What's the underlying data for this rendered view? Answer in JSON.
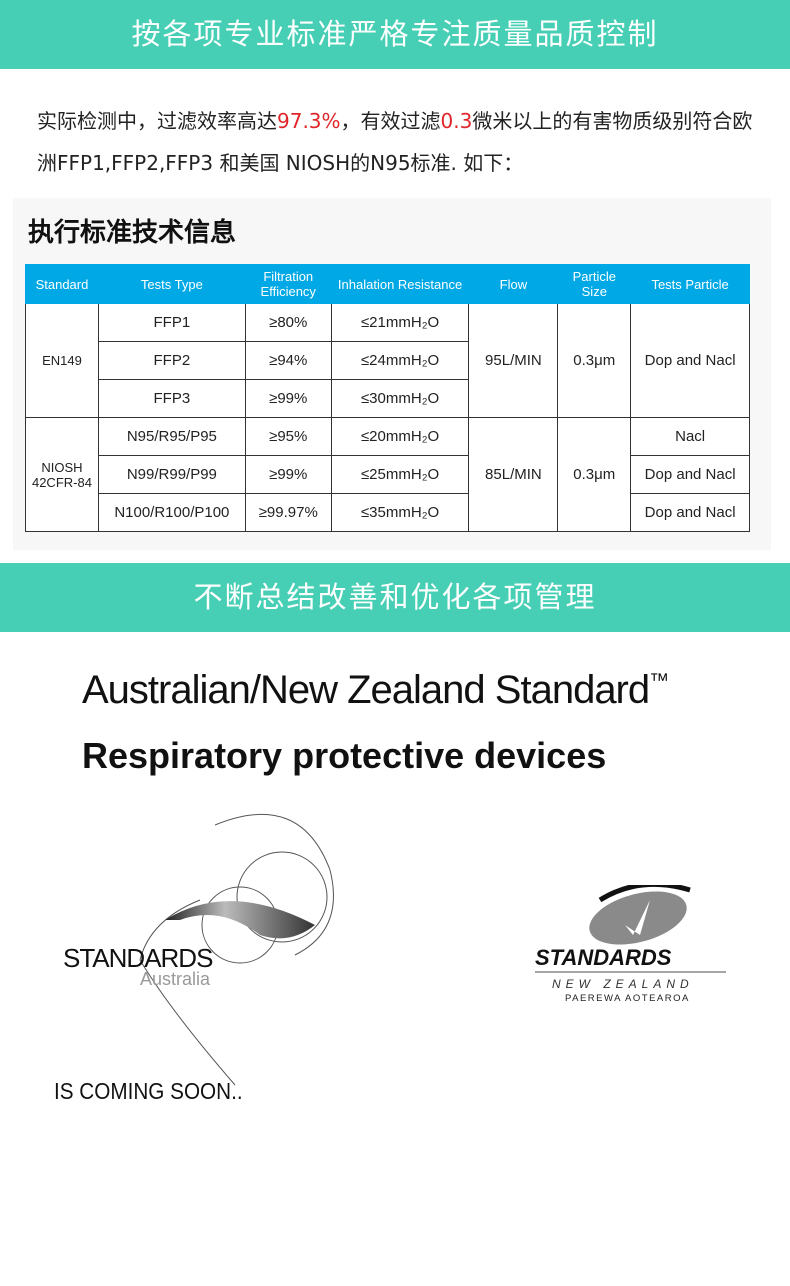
{
  "banner1": "按各项专业标准严格专注质量品质控制",
  "intro": {
    "p1": "实际检测中，过滤效率高达",
    "v1": "97.3%",
    "p2": "，有效过滤",
    "v2": "0.3",
    "p3": "微米以上的有害物质级别符合欧洲FFP1,FFP2,FFP3 和美国 NIOSH的N95标准. 如下："
  },
  "panel_title": "执行标准技术信息",
  "table": {
    "headers": [
      "Standard",
      "Tests  Type",
      "Filtration Efficiency",
      "Inhalation Resistance",
      "Flow",
      "Particle Size",
      "Tests Particle"
    ],
    "groups": [
      {
        "standard": "EN149",
        "flow": "95L/MIN",
        "size": "0.3μm",
        "rows": [
          {
            "type": "FFP1",
            "eff": "≥80%",
            "res": "≤21mmH₂O",
            "particle": "Dop and Nacl"
          },
          {
            "type": "FFP2",
            "eff": "≥94%",
            "res": "≤24mmH₂O"
          },
          {
            "type": "FFP3",
            "eff": "≥99%",
            "res": "≤30mmH₂O"
          }
        ]
      },
      {
        "standard": "NIOSH 42CFR-84",
        "flow": "85L/MIN",
        "size": "0.3μm",
        "rows": [
          {
            "type": "N95/R95/P95",
            "eff": "≥95%",
            "res": "≤20mmH₂O",
            "particle": "Nacl"
          },
          {
            "type": "N99/R99/P99",
            "eff": "≥99%",
            "res": "≤25mmH₂O",
            "particle": "Dop and Nacl"
          },
          {
            "type": "N100/R100/P100",
            "eff": "≥99.97%",
            "res": "≤35mmH₂O",
            "particle": "Dop and Nacl"
          }
        ]
      }
    ]
  },
  "banner2": "不断总结改善和优化各项管理",
  "anz": {
    "title": "Australian/New Zealand Standard",
    "tm": "™",
    "subtitle": "Respiratory protective devices"
  },
  "logos": {
    "au_main": "STANDARDS",
    "au_sub": "Australia",
    "nz_main": "STANDARDS",
    "nz_sub": "NEW ZEALAND",
    "nz_maori": "PAEREWA AOTEAROA"
  },
  "coming_soon": "IS COMING SOON.."
}
